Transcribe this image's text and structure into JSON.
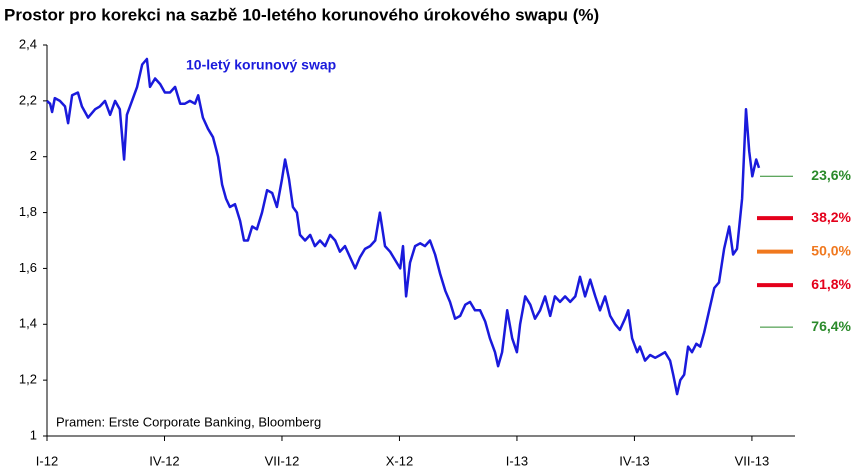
{
  "chart_data": {
    "type": "line",
    "title": "Prostor pro korekci na sazbě 10-letého korunového úrokového swapu (%)",
    "annotation": "10-letý korunový swap",
    "source": "Pramen: Erste Corporate Banking, Bloomberg",
    "xlim": [
      0,
      19.1
    ],
    "xticks": [
      {
        "value": 0,
        "label": "I-12"
      },
      {
        "value": 3,
        "label": "IV-12"
      },
      {
        "value": 6,
        "label": "VII-12"
      },
      {
        "value": 9,
        "label": "X-12"
      },
      {
        "value": 12,
        "label": "I-13"
      },
      {
        "value": 15,
        "label": "IV-13"
      },
      {
        "value": 18,
        "label": "VII-13"
      }
    ],
    "ylim": [
      1,
      2.4
    ],
    "yticks": [
      1,
      {
        "value": 1.2,
        "label": "1,2"
      },
      {
        "value": 1.4,
        "label": "1,4"
      },
      {
        "value": 1.6,
        "label": "1,6"
      },
      {
        "value": 1.8,
        "label": "1,8"
      },
      2,
      {
        "value": 2.2,
        "label": "2,2"
      },
      {
        "value": 2.4,
        "label": "2,4"
      }
    ],
    "series": [
      {
        "name": "10-letý korunový swap",
        "color": "#1a1adc",
        "x": [
          0,
          0.08,
          0.13,
          0.2,
          0.33,
          0.46,
          0.54,
          0.64,
          0.79,
          0.89,
          1.05,
          1.23,
          1.35,
          1.48,
          1.61,
          1.74,
          1.86,
          1.97,
          2.04,
          2.17,
          2.3,
          2.43,
          2.55,
          2.63,
          2.76,
          2.89,
          3.01,
          3.14,
          3.27,
          3.4,
          3.52,
          3.65,
          3.78,
          3.86,
          3.98,
          4.11,
          4.24,
          4.37,
          4.47,
          4.57,
          4.67,
          4.8,
          4.93,
          5.03,
          5.13,
          5.24,
          5.36,
          5.49,
          5.62,
          5.75,
          5.87,
          6.0,
          6.08,
          6.18,
          6.28,
          6.38,
          6.46,
          6.59,
          6.72,
          6.84,
          6.97,
          7.1,
          7.23,
          7.36,
          7.48,
          7.61,
          7.74,
          7.87,
          7.99,
          8.12,
          8.25,
          8.38,
          8.5,
          8.63,
          8.76,
          8.89,
          9.02,
          9.09,
          9.17,
          9.27,
          9.4,
          9.53,
          9.65,
          9.78,
          9.91,
          10.04,
          10.17,
          10.29,
          10.42,
          10.55,
          10.68,
          10.8,
          10.93,
          11.06,
          11.19,
          11.31,
          11.44,
          11.52,
          11.62,
          11.75,
          11.88,
          12.0,
          12.08,
          12.21,
          12.34,
          12.46,
          12.59,
          12.72,
          12.85,
          12.97,
          13.1,
          13.23,
          13.36,
          13.49,
          13.61,
          13.74,
          13.87,
          14.0,
          14.12,
          14.25,
          14.38,
          14.51,
          14.63,
          14.76,
          14.84,
          14.94,
          15.07,
          15.14,
          15.27,
          15.4,
          15.53,
          15.66,
          15.78,
          15.91,
          15.99,
          16.09,
          16.17,
          16.27,
          16.37,
          16.47,
          16.58,
          16.68,
          16.78,
          16.91,
          17.04,
          17.16,
          17.29,
          17.42,
          17.52,
          17.62,
          17.75,
          17.85,
          17.93,
          18.01,
          18.11,
          18.18
        ],
        "values": [
          2.2,
          2.19,
          2.16,
          2.21,
          2.2,
          2.18,
          2.12,
          2.22,
          2.23,
          2.18,
          2.14,
          2.17,
          2.18,
          2.2,
          2.15,
          2.2,
          2.17,
          1.99,
          2.15,
          2.2,
          2.25,
          2.33,
          2.35,
          2.25,
          2.28,
          2.26,
          2.23,
          2.23,
          2.25,
          2.19,
          2.19,
          2.2,
          2.19,
          2.22,
          2.14,
          2.1,
          2.07,
          2.0,
          1.9,
          1.85,
          1.82,
          1.83,
          1.77,
          1.7,
          1.7,
          1.75,
          1.74,
          1.8,
          1.88,
          1.87,
          1.82,
          1.92,
          1.99,
          1.92,
          1.82,
          1.8,
          1.72,
          1.7,
          1.72,
          1.68,
          1.7,
          1.68,
          1.72,
          1.7,
          1.66,
          1.68,
          1.64,
          1.6,
          1.64,
          1.67,
          1.68,
          1.7,
          1.8,
          1.68,
          1.66,
          1.63,
          1.6,
          1.68,
          1.5,
          1.62,
          1.68,
          1.69,
          1.68,
          1.7,
          1.65,
          1.58,
          1.52,
          1.48,
          1.42,
          1.43,
          1.47,
          1.48,
          1.45,
          1.45,
          1.41,
          1.35,
          1.3,
          1.25,
          1.3,
          1.45,
          1.35,
          1.3,
          1.4,
          1.5,
          1.47,
          1.42,
          1.45,
          1.5,
          1.43,
          1.5,
          1.48,
          1.5,
          1.48,
          1.5,
          1.57,
          1.5,
          1.56,
          1.5,
          1.45,
          1.5,
          1.43,
          1.4,
          1.38,
          1.42,
          1.45,
          1.35,
          1.3,
          1.32,
          1.27,
          1.29,
          1.28,
          1.29,
          1.3,
          1.27,
          1.22,
          1.15,
          1.2,
          1.22,
          1.32,
          1.3,
          1.33,
          1.32,
          1.37,
          1.45,
          1.53,
          1.55,
          1.67,
          1.75,
          1.65,
          1.67,
          1.85,
          2.17,
          2.02,
          1.93,
          1.99,
          1.96
        ]
      }
    ],
    "levels": [
      {
        "label": "23,6%",
        "value": 1.93,
        "color": "#2a8a2a",
        "thick": false
      },
      {
        "label": "38,2%",
        "value": 1.78,
        "color": "#e4001b",
        "thick": true
      },
      {
        "label": "50,0%",
        "value": 1.66,
        "color": "#f0781e",
        "thick": true
      },
      {
        "label": "61,8%",
        "value": 1.54,
        "color": "#e4001b",
        "thick": true
      },
      {
        "label": "76,4%",
        "value": 1.39,
        "color": "#2a8a2a",
        "thick": false
      }
    ]
  }
}
